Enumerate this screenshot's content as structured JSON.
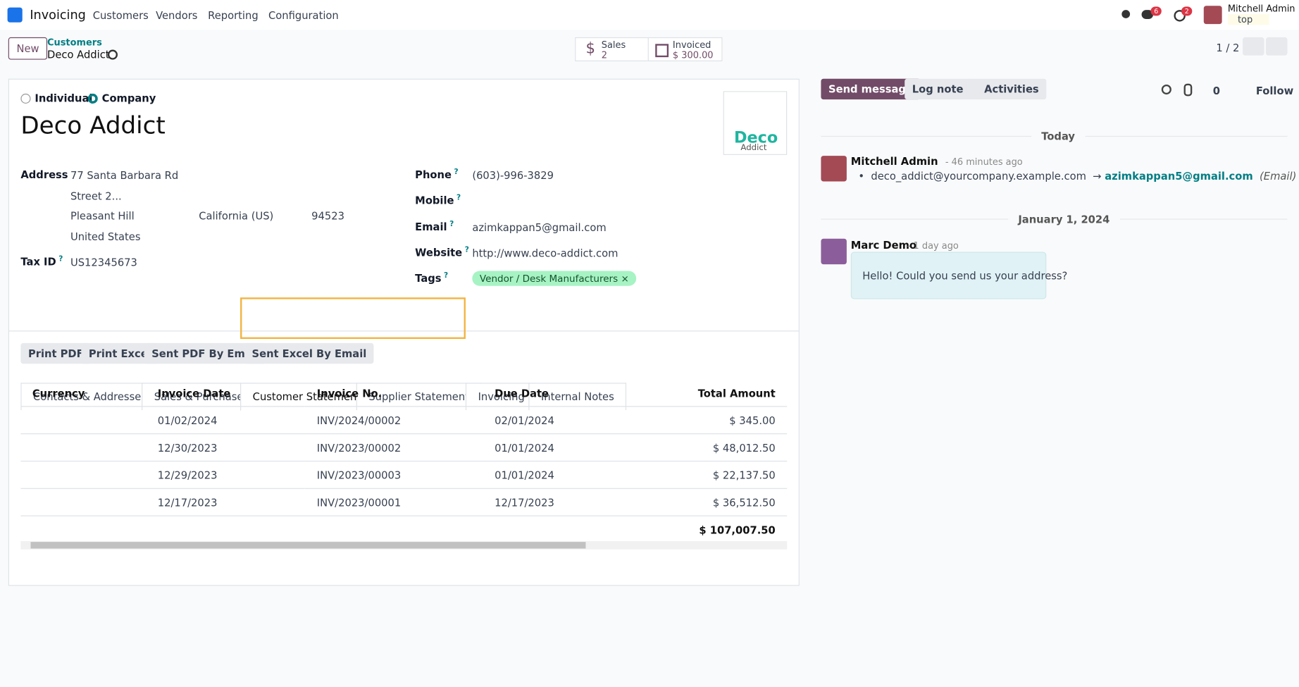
{
  "navbar": {
    "app": "Invoicing",
    "menu": [
      "Customers",
      "Vendors",
      "Reporting",
      "Configuration"
    ],
    "badges": {
      "messages": "6",
      "activities": "2"
    },
    "user": {
      "name": "Mitchell Admin",
      "db": "top"
    }
  },
  "control_panel": {
    "new_button": "New",
    "breadcrumb": "Customers",
    "record": "Deco Addict",
    "smart_buttons": [
      {
        "label": "Sales",
        "value": "2"
      },
      {
        "label": "Invoiced",
        "value": "$ 300.00"
      }
    ],
    "pager": "1 / 2"
  },
  "form": {
    "company_types": [
      "Individual",
      "Company"
    ],
    "name": "Deco Addict",
    "logo": {
      "line1": "Deco",
      "line2": "Addict"
    },
    "help": "?",
    "address": {
      "label": "Address",
      "street": "77 Santa Barbara Rd",
      "street2": "Street 2...",
      "city": "Pleasant Hill",
      "state": "California (US)",
      "zip": "94523",
      "country": "United States"
    },
    "tax_id": {
      "label": "Tax ID",
      "value": "US12345673"
    },
    "phone": {
      "label": "Phone",
      "value": "(603)-996-3829"
    },
    "mobile": {
      "label": "Mobile"
    },
    "email": {
      "label": "Email",
      "value": "azimkappan5@gmail.com"
    },
    "website": {
      "label": "Website",
      "value": "http://www.deco-addict.com"
    },
    "tags": {
      "label": "Tags",
      "values": [
        "Vendor / Desk Manufacturers"
      ]
    },
    "tabs": [
      "Contacts & Addresses",
      "Sales & Purchase",
      "Customer Statement",
      "Supplier Statement",
      "Invoicing",
      "Internal Notes"
    ],
    "buttons": [
      "Print PDF",
      "Print Excel",
      "Sent PDF By Email",
      "Sent Excel By Email"
    ],
    "table": {
      "headers": [
        "Currency",
        "Invoice Date",
        "Invoice No.",
        "Due Date",
        "Total Amount"
      ],
      "rows": [
        [
          "01/02/2024",
          "INV/2024/00002",
          "02/01/2024",
          "$ 345.00"
        ],
        [
          "12/30/2023",
          "INV/2023/00002",
          "01/01/2024",
          "$ 48,012.50"
        ],
        [
          "12/29/2023",
          "INV/2023/00003",
          "01/01/2024",
          "$ 22,137.50"
        ],
        [
          "12/17/2023",
          "INV/2023/00001",
          "12/17/2023",
          "$ 36,512.50"
        ]
      ],
      "total": "$ 107,007.50"
    }
  },
  "chatter": {
    "buttons": [
      "Send message",
      "Log note",
      "Activities"
    ],
    "followers": "0",
    "follow": "Follow",
    "messages": [
      {
        "date": "Today",
        "author": "Mitchell Admin",
        "time": "- 46 minutes ago",
        "old": "deco_addict@yourcompany.example.com",
        "new": "azimkappan5@gmail.com",
        "field": "(Email)"
      },
      {
        "date": "January 1, 2024",
        "author": "Marc Demo",
        "time": "- 1 day ago",
        "body": "Hello! Could you send us your address?"
      }
    ]
  }
}
